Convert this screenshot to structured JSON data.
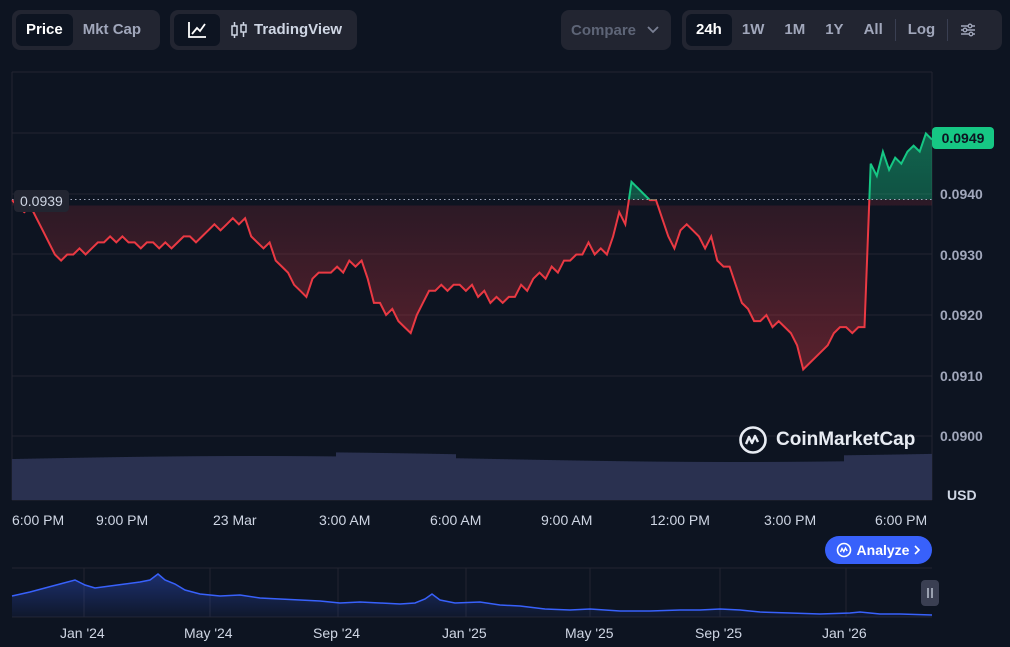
{
  "toolbar": {
    "view_tabs": [
      {
        "label": "Price",
        "active": true
      },
      {
        "label": "Mkt Cap",
        "active": false
      }
    ],
    "chart_modes": {
      "line_icon": "line-chart-icon",
      "tradingview_icon": "candlestick-icon",
      "tradingview_label": "TradingView"
    },
    "compare_label": "Compare",
    "ranges": [
      {
        "label": "24h",
        "active": true
      },
      {
        "label": "1W",
        "active": false
      },
      {
        "label": "1M",
        "active": false
      },
      {
        "label": "1Y",
        "active": false
      },
      {
        "label": "All",
        "active": false
      }
    ],
    "log_label": "Log",
    "settings_icon": "sliders-icon"
  },
  "price_labels": {
    "current": "0.0949",
    "reference": "0.0939"
  },
  "y_axis": {
    "ticks": [
      "0.0940",
      "0.0930",
      "0.0920",
      "0.0910",
      "0.0900"
    ],
    "unit": "USD"
  },
  "x_axis": {
    "ticks": [
      "6:00 PM",
      "9:00 PM",
      "23 Mar",
      "3:00 AM",
      "6:00 AM",
      "9:00 AM",
      "12:00 PM",
      "3:00 PM",
      "6:00 PM"
    ]
  },
  "navigator": {
    "ticks": [
      "Jan '24",
      "May '24",
      "Sep '24",
      "Jan '25",
      "May '25",
      "Sep '25",
      "Jan '26"
    ],
    "handle_icon": "pause-icon"
  },
  "watermark": "CoinMarketCap",
  "analyze_label": "Analyze",
  "colors": {
    "up": "#16c784",
    "down": "#ea3943",
    "accent": "#3861fb",
    "background": "#0d1421"
  },
  "chart_data": {
    "type": "line",
    "reference_price": 0.0939,
    "ylim": [
      0.0898,
      0.096
    ],
    "x": [
      "6:00 PM",
      "9:00 PM",
      "23 Mar",
      "3:00 AM",
      "6:00 AM",
      "9:00 AM",
      "12:00 PM",
      "3:00 PM",
      "6:00 PM"
    ],
    "price_points": [
      [
        0,
        0.0939
      ],
      [
        1,
        0.0938
      ],
      [
        2,
        0.0937
      ],
      [
        3,
        0.0938
      ],
      [
        4,
        0.0936
      ],
      [
        5,
        0.0934
      ],
      [
        6,
        0.0932
      ],
      [
        7,
        0.093
      ],
      [
        8,
        0.0929
      ],
      [
        9,
        0.093
      ],
      [
        10,
        0.093
      ],
      [
        11,
        0.0931
      ],
      [
        12,
        0.093
      ],
      [
        13,
        0.0931
      ],
      [
        14,
        0.0932
      ],
      [
        15,
        0.0932
      ],
      [
        16,
        0.0933
      ],
      [
        17,
        0.0932
      ],
      [
        18,
        0.0933
      ],
      [
        19,
        0.0932
      ],
      [
        20,
        0.0932
      ],
      [
        21,
        0.0931
      ],
      [
        22,
        0.0932
      ],
      [
        23,
        0.0932
      ],
      [
        24,
        0.0931
      ],
      [
        25,
        0.0932
      ],
      [
        26,
        0.0931
      ],
      [
        27,
        0.0932
      ],
      [
        28,
        0.0933
      ],
      [
        29,
        0.0933
      ],
      [
        30,
        0.0932
      ],
      [
        31,
        0.0933
      ],
      [
        32,
        0.0934
      ],
      [
        33,
        0.0935
      ],
      [
        34,
        0.0934
      ],
      [
        35,
        0.0935
      ],
      [
        36,
        0.0936
      ],
      [
        37,
        0.0935
      ],
      [
        38,
        0.0936
      ],
      [
        39,
        0.0933
      ],
      [
        40,
        0.0932
      ],
      [
        41,
        0.0931
      ],
      [
        42,
        0.0932
      ],
      [
        43,
        0.0929
      ],
      [
        44,
        0.0928
      ],
      [
        45,
        0.0927
      ],
      [
        46,
        0.0925
      ],
      [
        47,
        0.0924
      ],
      [
        48,
        0.0923
      ],
      [
        49,
        0.0926
      ],
      [
        50,
        0.0927
      ],
      [
        51,
        0.0927
      ],
      [
        52,
        0.0927
      ],
      [
        53,
        0.0928
      ],
      [
        54,
        0.0927
      ],
      [
        55,
        0.0929
      ],
      [
        56,
        0.0928
      ],
      [
        57,
        0.0929
      ],
      [
        58,
        0.0926
      ],
      [
        59,
        0.0922
      ],
      [
        60,
        0.0922
      ],
      [
        61,
        0.092
      ],
      [
        62,
        0.0921
      ],
      [
        63,
        0.0919
      ],
      [
        64,
        0.0918
      ],
      [
        65,
        0.0917
      ],
      [
        66,
        0.092
      ],
      [
        67,
        0.0922
      ],
      [
        68,
        0.0924
      ],
      [
        69,
        0.0924
      ],
      [
        70,
        0.0925
      ],
      [
        71,
        0.0924
      ],
      [
        72,
        0.0925
      ],
      [
        73,
        0.0925
      ],
      [
        74,
        0.0924
      ],
      [
        75,
        0.0925
      ],
      [
        76,
        0.0923
      ],
      [
        77,
        0.0924
      ],
      [
        78,
        0.0922
      ],
      [
        79,
        0.0923
      ],
      [
        80,
        0.0922
      ],
      [
        81,
        0.0923
      ],
      [
        82,
        0.0923
      ],
      [
        83,
        0.0925
      ],
      [
        84,
        0.0924
      ],
      [
        85,
        0.0926
      ],
      [
        86,
        0.0927
      ],
      [
        87,
        0.0926
      ],
      [
        88,
        0.0928
      ],
      [
        89,
        0.0927
      ],
      [
        90,
        0.0929
      ],
      [
        91,
        0.0929
      ],
      [
        92,
        0.093
      ],
      [
        93,
        0.093
      ],
      [
        94,
        0.0932
      ],
      [
        95,
        0.093
      ],
      [
        96,
        0.0931
      ],
      [
        97,
        0.093
      ],
      [
        98,
        0.0933
      ],
      [
        99,
        0.0937
      ],
      [
        100,
        0.0935
      ],
      [
        101,
        0.0942
      ],
      [
        102,
        0.0941
      ],
      [
        103,
        0.094
      ],
      [
        104,
        0.0939
      ],
      [
        105,
        0.0939
      ],
      [
        106,
        0.0936
      ],
      [
        107,
        0.0933
      ],
      [
        108,
        0.0931
      ],
      [
        109,
        0.0934
      ],
      [
        110,
        0.0935
      ],
      [
        111,
        0.0934
      ],
      [
        112,
        0.0933
      ],
      [
        113,
        0.0931
      ],
      [
        114,
        0.0933
      ],
      [
        115,
        0.0929
      ],
      [
        116,
        0.0928
      ],
      [
        117,
        0.0928
      ],
      [
        118,
        0.0925
      ],
      [
        119,
        0.0922
      ],
      [
        120,
        0.0921
      ],
      [
        121,
        0.0919
      ],
      [
        122,
        0.0919
      ],
      [
        123,
        0.092
      ],
      [
        124,
        0.0918
      ],
      [
        125,
        0.0919
      ],
      [
        126,
        0.0918
      ],
      [
        127,
        0.0917
      ],
      [
        128,
        0.0915
      ],
      [
        129,
        0.0911
      ],
      [
        130,
        0.0912
      ],
      [
        131,
        0.0913
      ],
      [
        132,
        0.0914
      ],
      [
        133,
        0.0915
      ],
      [
        134,
        0.0917
      ],
      [
        135,
        0.0918
      ],
      [
        136,
        0.0918
      ],
      [
        137,
        0.0917
      ],
      [
        138,
        0.0918
      ],
      [
        139,
        0.0918
      ],
      [
        140,
        0.0945
      ],
      [
        141,
        0.0943
      ],
      [
        142,
        0.0947
      ],
      [
        143,
        0.0944
      ],
      [
        144,
        0.0946
      ],
      [
        145,
        0.0945
      ],
      [
        146,
        0.0947
      ],
      [
        147,
        0.0948
      ],
      [
        148,
        0.0947
      ],
      [
        149,
        0.095
      ],
      [
        150,
        0.0949
      ]
    ]
  }
}
